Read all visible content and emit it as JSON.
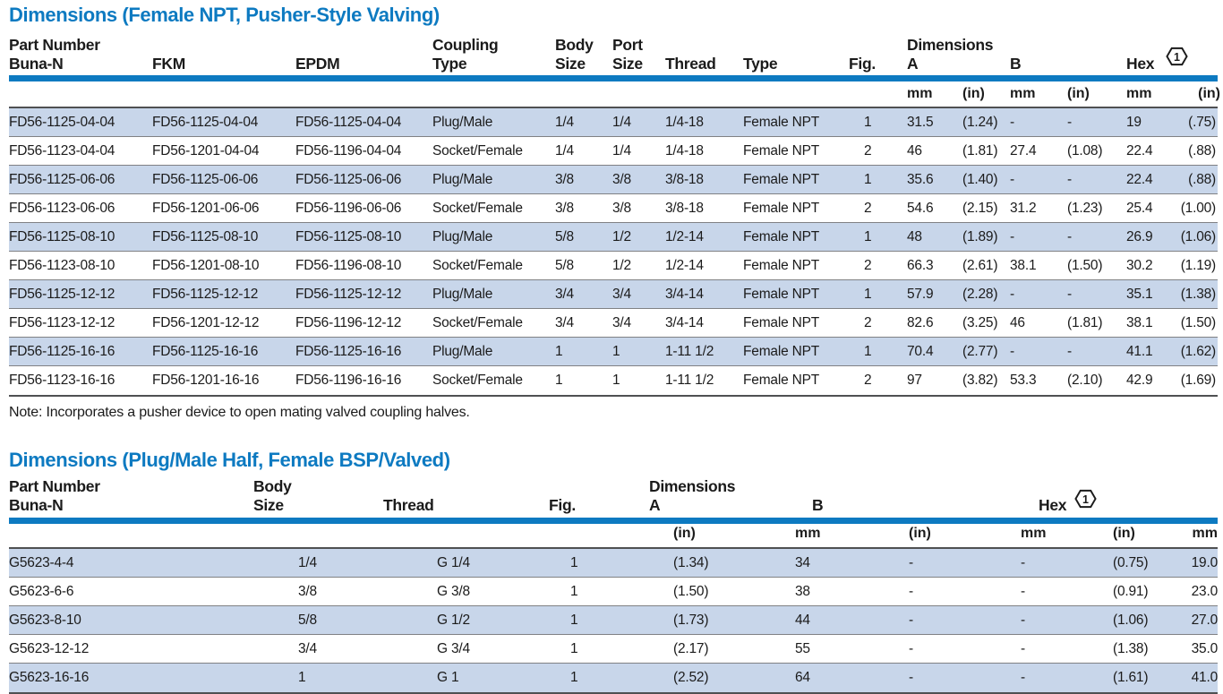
{
  "colors": {
    "accent_blue": "#0d7ac1",
    "row_alt_blue": "#c8d6ea",
    "text": "#1b1b1b"
  },
  "table1": {
    "title": "Dimensions (Female NPT, Pusher-Style Valving)",
    "header": {
      "part_number": "Part Number",
      "buna": "Buna-N",
      "fkm": "FKM",
      "epdm": "EPDM",
      "coupling_l1": "Coupling",
      "coupling_l2": "Type",
      "body_l1": "Body",
      "body_l2": "Size",
      "port_l1": "Port",
      "port_l2": "Size",
      "thread": "Thread",
      "type": "Type",
      "fig": "Fig.",
      "dimensions": "Dimensions",
      "a": "A",
      "b": "B",
      "hex": "Hex",
      "hex_symbol": "1"
    },
    "units": {
      "a_mm": "mm",
      "a_in": "(in)",
      "b_mm": "mm",
      "b_in": "(in)",
      "hex_mm": "mm",
      "hex_in": "(in)"
    },
    "rows": [
      {
        "buna": "FD56-1125-04-04",
        "fkm": "FD56-1125-04-04",
        "epdm": "FD56-1125-04-04",
        "coupling": "Plug/Male",
        "body": "1/4",
        "port": "1/4",
        "thread": "1/4-18",
        "type": "Female NPT",
        "fig": "1",
        "a_mm": "31.5",
        "a_in": "(1.24)",
        "b_mm": "-",
        "b_in": "-",
        "hex_mm": "19",
        "hex_in": "(.75)"
      },
      {
        "buna": "FD56-1123-04-04",
        "fkm": "FD56-1201-04-04",
        "epdm": "FD56-1196-04-04",
        "coupling": "Socket/Female",
        "body": "1/4",
        "port": "1/4",
        "thread": "1/4-18",
        "type": "Female NPT",
        "fig": "2",
        "a_mm": "46",
        "a_in": "(1.81)",
        "b_mm": "27.4",
        "b_in": "(1.08)",
        "hex_mm": "22.4",
        "hex_in": "(.88)"
      },
      {
        "buna": "FD56-1125-06-06",
        "fkm": "FD56-1125-06-06",
        "epdm": "FD56-1125-06-06",
        "coupling": "Plug/Male",
        "body": "3/8",
        "port": "3/8",
        "thread": "3/8-18",
        "type": "Female NPT",
        "fig": "1",
        "a_mm": "35.6",
        "a_in": "(1.40)",
        "b_mm": "-",
        "b_in": "-",
        "hex_mm": "22.4",
        "hex_in": "(.88)"
      },
      {
        "buna": "FD56-1123-06-06",
        "fkm": "FD56-1201-06-06",
        "epdm": "FD56-1196-06-06",
        "coupling": "Socket/Female",
        "body": "3/8",
        "port": "3/8",
        "thread": "3/8-18",
        "type": "Female NPT",
        "fig": "2",
        "a_mm": "54.6",
        "a_in": "(2.15)",
        "b_mm": "31.2",
        "b_in": "(1.23)",
        "hex_mm": "25.4",
        "hex_in": "(1.00)"
      },
      {
        "buna": "FD56-1125-08-10",
        "fkm": "FD56-1125-08-10",
        "epdm": "FD56-1125-08-10",
        "coupling": "Plug/Male",
        "body": "5/8",
        "port": "1/2",
        "thread": "1/2-14",
        "type": "Female NPT",
        "fig": "1",
        "a_mm": "48",
        "a_in": "(1.89)",
        "b_mm": "-",
        "b_in": "-",
        "hex_mm": "26.9",
        "hex_in": "(1.06)"
      },
      {
        "buna": "FD56-1123-08-10",
        "fkm": "FD56-1201-08-10",
        "epdm": "FD56-1196-08-10",
        "coupling": "Socket/Female",
        "body": "5/8",
        "port": "1/2",
        "thread": "1/2-14",
        "type": "Female NPT",
        "fig": "2",
        "a_mm": "66.3",
        "a_in": "(2.61)",
        "b_mm": "38.1",
        "b_in": "(1.50)",
        "hex_mm": "30.2",
        "hex_in": "(1.19)"
      },
      {
        "buna": "FD56-1125-12-12",
        "fkm": "FD56-1125-12-12",
        "epdm": "FD56-1125-12-12",
        "coupling": "Plug/Male",
        "body": "3/4",
        "port": "3/4",
        "thread": "3/4-14",
        "type": "Female NPT",
        "fig": "1",
        "a_mm": "57.9",
        "a_in": "(2.28)",
        "b_mm": "-",
        "b_in": "-",
        "hex_mm": "35.1",
        "hex_in": "(1.38)"
      },
      {
        "buna": "FD56-1123-12-12",
        "fkm": "FD56-1201-12-12",
        "epdm": "FD56-1196-12-12",
        "coupling": "Socket/Female",
        "body": "3/4",
        "port": "3/4",
        "thread": "3/4-14",
        "type": "Female NPT",
        "fig": "2",
        "a_mm": "82.6",
        "a_in": "(3.25)",
        "b_mm": "46",
        "b_in": "(1.81)",
        "hex_mm": "38.1",
        "hex_in": "(1.50)"
      },
      {
        "buna": "FD56-1125-16-16",
        "fkm": "FD56-1125-16-16",
        "epdm": "FD56-1125-16-16",
        "coupling": "Plug/Male",
        "body": "1",
        "port": "1",
        "thread": "1-11 1/2",
        "type": "Female NPT",
        "fig": "1",
        "a_mm": "70.4",
        "a_in": "(2.77)",
        "b_mm": "-",
        "b_in": "-",
        "hex_mm": "41.1",
        "hex_in": "(1.62)"
      },
      {
        "buna": "FD56-1123-16-16",
        "fkm": "FD56-1201-16-16",
        "epdm": "FD56-1196-16-16",
        "coupling": "Socket/Female",
        "body": "1",
        "port": "1",
        "thread": "1-11 1/2",
        "type": "Female NPT",
        "fig": "2",
        "a_mm": "97",
        "a_in": "(3.82)",
        "b_mm": "53.3",
        "b_in": "(2.10)",
        "hex_mm": "42.9",
        "hex_in": "(1.69)"
      }
    ],
    "note": "Note: Incorporates a pusher device to open mating valved coupling halves."
  },
  "table2": {
    "title": "Dimensions (Plug/Male Half, Female BSP/Valved)",
    "header": {
      "part_number": "Part Number",
      "buna": "Buna-N",
      "body_l1": "Body",
      "body_l2": "Size",
      "thread": "Thread",
      "fig": "Fig.",
      "dimensions": "Dimensions",
      "a": "A",
      "b": "B",
      "hex": "Hex",
      "hex_symbol": "1"
    },
    "units": {
      "a_in": "(in)",
      "a_mm": "mm",
      "b_in": "(in)",
      "b_mm": "mm",
      "hex_in": "(in)",
      "hex_mm": "mm"
    },
    "rows": [
      {
        "buna": "G5623-4-4",
        "body": "1/4",
        "thread": "G 1/4",
        "fig": "1",
        "a_in": "(1.34)",
        "a_mm": "34",
        "b_in": "-",
        "b_mm": "-",
        "hex_in": "(0.75)",
        "hex_mm": "19.0"
      },
      {
        "buna": "G5623-6-6",
        "body": "3/8",
        "thread": "G 3/8",
        "fig": "1",
        "a_in": "(1.50)",
        "a_mm": "38",
        "b_in": "-",
        "b_mm": "-",
        "hex_in": "(0.91)",
        "hex_mm": "23.0"
      },
      {
        "buna": "G5623-8-10",
        "body": "5/8",
        "thread": "G 1/2",
        "fig": "1",
        "a_in": "(1.73)",
        "a_mm": "44",
        "b_in": "-",
        "b_mm": "-",
        "hex_in": "(1.06)",
        "hex_mm": "27.0"
      },
      {
        "buna": "G5623-12-12",
        "body": "3/4",
        "thread": "G 3/4",
        "fig": "1",
        "a_in": "(2.17)",
        "a_mm": "55",
        "b_in": "-",
        "b_mm": "-",
        "hex_in": "(1.38)",
        "hex_mm": "35.0"
      },
      {
        "buna": "G5623-16-16",
        "body": "1",
        "thread": "G 1",
        "fig": "1",
        "a_in": "(2.52)",
        "a_mm": "64",
        "b_in": "-",
        "b_mm": "-",
        "hex_in": "(1.61)",
        "hex_mm": "41.0"
      }
    ]
  }
}
